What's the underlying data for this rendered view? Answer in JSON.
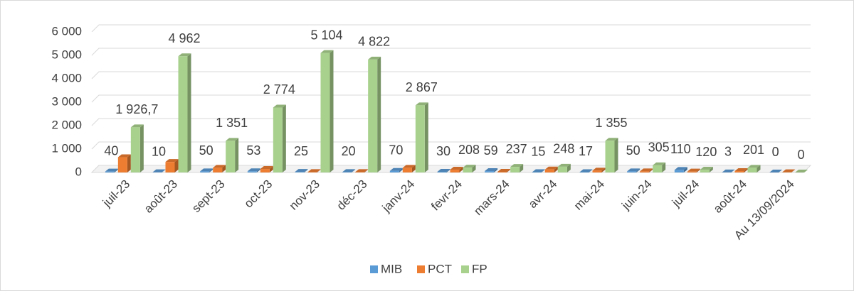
{
  "chart_data": {
    "type": "bar3d",
    "categories": [
      "juil-23",
      "août-23",
      "sept-23",
      "oct-23",
      "nov-23",
      "déc-23",
      "janv-24",
      "fevr-24",
      "mars-24",
      "avr-24",
      "mai-24",
      "juin-24",
      "juil-24",
      "août-24",
      "Au 13/09/2024"
    ],
    "series": [
      {
        "name": "MIB",
        "color": "#5b9bd5",
        "values": [
          40,
          10,
          50,
          53,
          25,
          20,
          70,
          30,
          59,
          15,
          17,
          50,
          110,
          3,
          0
        ]
      },
      {
        "name": "PCT",
        "color": "#ed7d31",
        "values": [
          650,
          450,
          200,
          150,
          20,
          20,
          200,
          120,
          30,
          130,
          80,
          50,
          40,
          60,
          10
        ]
      },
      {
        "name": "FP",
        "color": "#a9d18e",
        "values": [
          1926.7,
          4962,
          1351,
          2774,
          5104,
          4822,
          2867,
          208,
          237,
          248,
          1355,
          305,
          120,
          201,
          0
        ],
        "value_labels": [
          "1 926,7",
          "4 962",
          "1 351",
          "2 774",
          "5 104",
          "4 822",
          "2 867",
          "208",
          "237",
          "248",
          "1 355",
          "305",
          "120",
          "201",
          "0"
        ]
      }
    ],
    "ylim": [
      0,
      6000
    ],
    "yticks": [
      0,
      {
        "value": 1000,
        "label": "1 000"
      },
      {
        "value": 2000,
        "label": "2 000"
      },
      {
        "value": 3000,
        "label": "3 000"
      },
      {
        "value": 4000,
        "label": "4 000"
      },
      {
        "value": 5000,
        "label": "5 000"
      },
      {
        "value": 6000,
        "label": "6 000"
      }
    ],
    "grid": true,
    "legend": "bottom"
  }
}
